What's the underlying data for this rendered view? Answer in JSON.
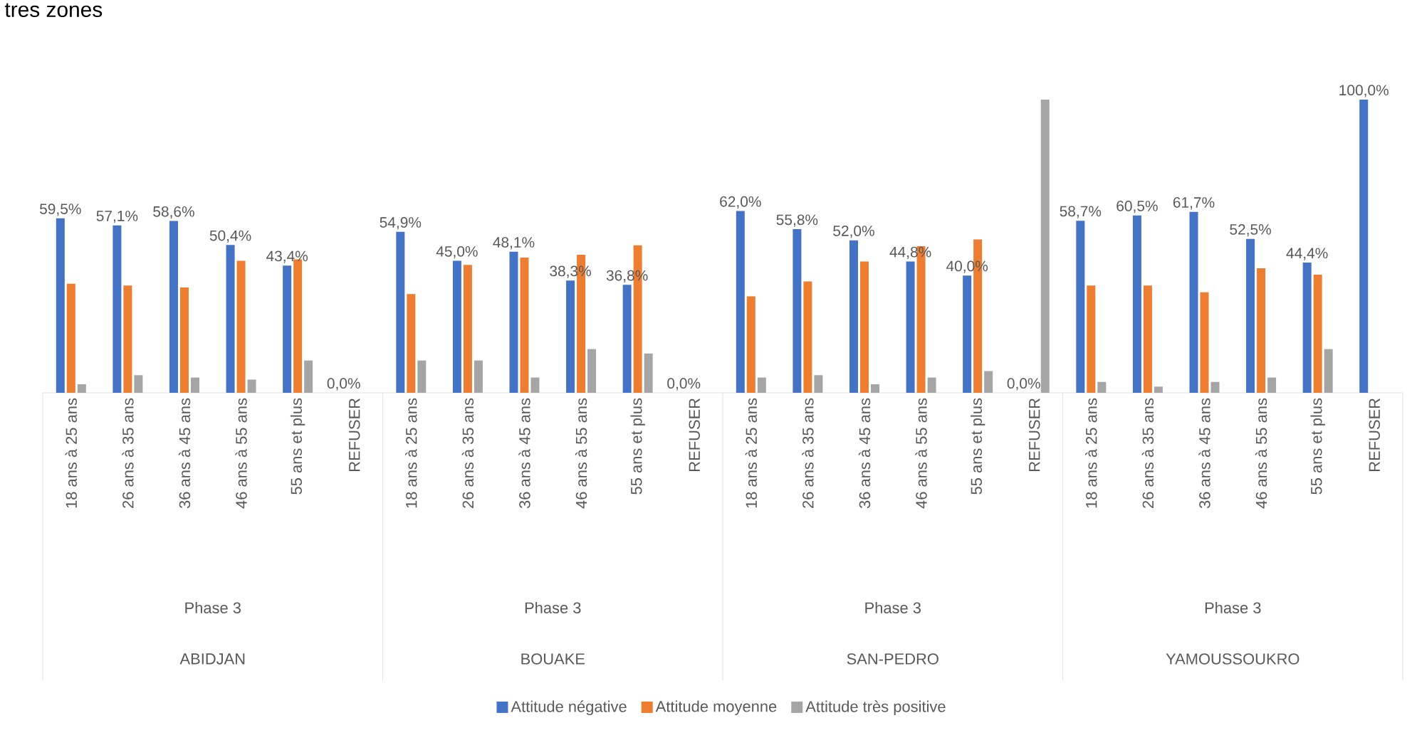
{
  "chart_data": {
    "type": "bar",
    "title": "tres zones",
    "categories": [
      "18 ans à 25 ans",
      "26 ans à 35 ans",
      "36 ans à 45 ans",
      "46 ans à 55 ans",
      "55 ans et plus",
      "REFUSER",
      "18 ans à 25 ans",
      "26 ans à 35 ans",
      "36 ans à 45 ans",
      "46 ans à 55 ans",
      "55 ans et plus",
      "REFUSER",
      "18 ans à 25 ans",
      "26 ans à 35 ans",
      "36 ans à 45 ans",
      "46 ans à 55 ans",
      "55 ans et plus",
      "REFUSER",
      "18 ans à 25 ans",
      "26 ans à 35 ans",
      "36 ans à 45 ans",
      "46 ans à 55 ans",
      "55 ans et plus",
      "REFUSER"
    ],
    "annotations": [
      "Phase 3",
      "ABIDJAN",
      "Phase 3",
      "BOUAKE",
      "Phase 3",
      "SAN-PEDRO",
      "Phase 3",
      "YAMOUSSOUKRO"
    ],
    "series": [
      {
        "name": "Attitude négative",
        "color": "#4472c4",
        "values": [
          59.5,
          57.1,
          58.6,
          50.4,
          43.4,
          0.0,
          54.9,
          45.0,
          48.1,
          38.3,
          36.8,
          0.0,
          62.0,
          55.8,
          52.0,
          44.8,
          40.0,
          0.0,
          58.7,
          60.5,
          61.7,
          52.5,
          44.4,
          100.0
        ],
        "value_labels": [
          "59,5%",
          "57,1%",
          "58,6%",
          "50,4%",
          "43,4%",
          "0,0%",
          "54,9%",
          "45,0%",
          "48,1%",
          "38,3%",
          "36,8%",
          "0,0%",
          "62,0%",
          "55,8%",
          "52,0%",
          "44,8%",
          "40,0%",
          "0,0%",
          "58,7%",
          "60,5%",
          "61,7%",
          "52,5%",
          "44,4%",
          "100,0%"
        ]
      },
      {
        "name": "Attitude moyenne",
        "color": "#ed7d31",
        "values": [
          37.2,
          36.6,
          35.9,
          45.0,
          45.5,
          0,
          33.7,
          43.6,
          46.1,
          47.1,
          50.3,
          0,
          32.9,
          38.0,
          44.8,
          50.0,
          52.3,
          0,
          36.6,
          36.6,
          34.3,
          42.5,
          40.3,
          0
        ]
      },
      {
        "name": "Attitude très positive",
        "color": "#a5a5a5",
        "values": [
          2.9,
          6.0,
          5.2,
          4.5,
          11.0,
          0,
          11.0,
          11.0,
          5.2,
          14.9,
          13.4,
          0,
          5.2,
          6.0,
          2.9,
          5.2,
          7.4,
          100.0,
          3.7,
          2.1,
          3.7,
          5.2,
          14.9,
          0
        ]
      }
    ],
    "legend": "bottom"
  }
}
